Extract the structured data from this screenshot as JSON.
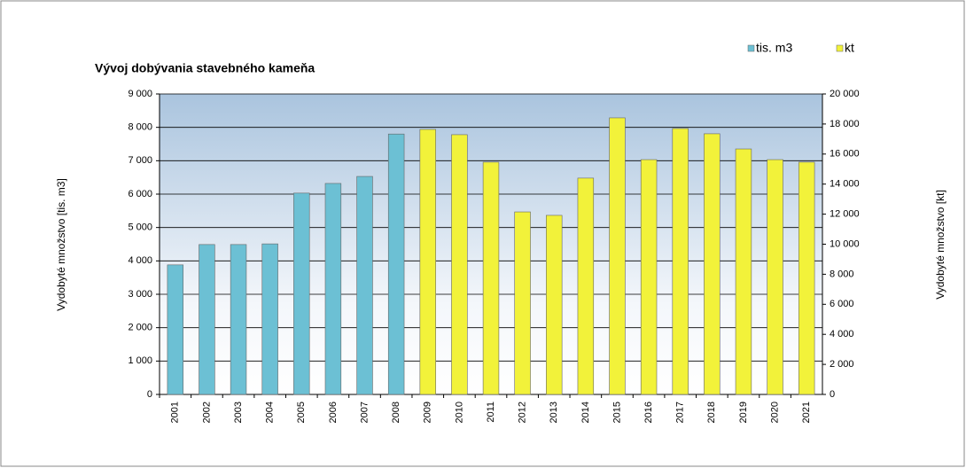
{
  "chart_data": {
    "type": "bar",
    "title": "Vývoj dobývania stavebného kameňa",
    "y_label": "Vydobyté množstvo [tis. m3]",
    "y2_label": "Vydobyté množstvo [kt]",
    "categories": [
      "2001",
      "2002",
      "2003",
      "2004",
      "2005",
      "2006",
      "2007",
      "2008",
      "2009",
      "2010",
      "2011",
      "2012",
      "2013",
      "2014",
      "2015",
      "2016",
      "2017",
      "2018",
      "2019",
      "2020",
      "2021"
    ],
    "series": [
      {
        "name": "tis. m3",
        "color": "#6cc0d4",
        "values": [
          3880,
          4490,
          4490,
          4510,
          6030,
          6320,
          6530,
          7800,
          null,
          null,
          null,
          null,
          null,
          null,
          null,
          null,
          null,
          null,
          null,
          null,
          null
        ]
      },
      {
        "name": "kt",
        "color": "#f2f23a",
        "axis": "y2",
        "values": [
          null,
          null,
          null,
          null,
          null,
          null,
          null,
          null,
          17640,
          17290,
          15460,
          12150,
          11920,
          14400,
          18410,
          15630,
          17700,
          17350,
          16340,
          15630,
          15460
        ]
      }
    ],
    "ylim": [
      0,
      9000
    ],
    "yticks": [
      0,
      {
        "value": 1000,
        "label": "1 000"
      },
      {
        "value": 2000,
        "label": "2 000"
      },
      {
        "value": 3000,
        "label": "3 000"
      },
      {
        "value": 4000,
        "label": "4 000"
      },
      {
        "value": 5000,
        "label": "5 000"
      },
      {
        "value": 6000,
        "label": "6 000"
      },
      {
        "value": 7000,
        "label": "7 000"
      },
      {
        "value": 8000,
        "label": "8 000"
      },
      {
        "value": 9000,
        "label": "9 000"
      }
    ],
    "y2lim": [
      0,
      20000
    ],
    "y2ticks": [
      0,
      {
        "value": 2000,
        "label": "2 000"
      },
      {
        "value": 4000,
        "label": "4 000"
      },
      {
        "value": 6000,
        "label": "6 000"
      },
      {
        "value": 8000,
        "label": "8 000"
      },
      {
        "value": 10000,
        "label": "10 000"
      },
      {
        "value": 12000,
        "label": "12 000"
      },
      {
        "value": 14000,
        "label": "14 000"
      },
      {
        "value": 16000,
        "label": "16 000"
      },
      {
        "value": 18000,
        "label": "18 000"
      },
      {
        "value": 20000,
        "label": "20 000"
      }
    ],
    "grid": true,
    "legend": "top-right"
  }
}
